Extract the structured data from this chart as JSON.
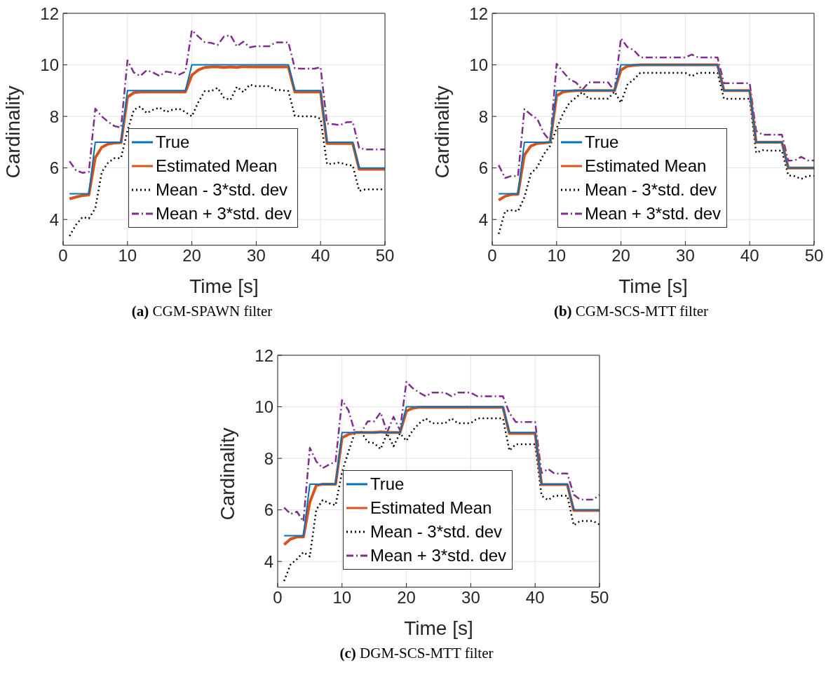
{
  "chart_data": [
    {
      "type": "line",
      "title": "(a) CGM-SPAWN filter",
      "xlabel": "Time [s]",
      "ylabel": "Cardinality",
      "xlim": [
        0,
        50
      ],
      "xticks": [
        0,
        10,
        20,
        30,
        40,
        50
      ],
      "ylim": [
        3,
        12
      ],
      "yticks": [
        4,
        6,
        8,
        10,
        12
      ],
      "grid": true,
      "legend": "bottom",
      "x": [
        1,
        2,
        3,
        4,
        5,
        6,
        7,
        8,
        9,
        10,
        11,
        12,
        13,
        14,
        15,
        16,
        17,
        18,
        19,
        20,
        21,
        22,
        23,
        24,
        25,
        26,
        27,
        28,
        29,
        30,
        31,
        32,
        33,
        34,
        35,
        36,
        37,
        38,
        39,
        40,
        41,
        42,
        43,
        44,
        45,
        46,
        47,
        48,
        49,
        50
      ],
      "series": [
        {
          "name": "True",
          "color": "#0072bd",
          "line_style": "solid",
          "values": [
            5,
            5,
            5,
            5,
            7,
            7,
            7,
            7,
            7,
            9,
            9,
            9,
            9,
            9,
            9,
            9,
            9,
            9,
            9,
            10,
            10,
            10,
            10,
            10,
            10,
            10,
            10,
            10,
            10,
            10,
            10,
            10,
            10,
            10,
            10,
            9,
            9,
            9,
            9,
            9,
            7,
            7,
            7,
            7,
            7,
            6,
            6,
            6,
            6,
            6
          ]
        },
        {
          "name": "Estimated Mean",
          "color": "#d95319",
          "line_style": "solid",
          "values": [
            4.8,
            4.87,
            4.93,
            4.95,
            6.4,
            6.8,
            6.93,
            6.97,
            6.98,
            8.75,
            8.92,
            8.95,
            8.95,
            8.95,
            8.95,
            8.95,
            8.95,
            8.95,
            8.95,
            9.6,
            9.8,
            9.9,
            9.92,
            9.92,
            9.9,
            9.92,
            9.9,
            9.93,
            9.92,
            9.92,
            9.92,
            9.92,
            9.92,
            9.92,
            9.92,
            8.95,
            8.95,
            8.95,
            8.95,
            8.95,
            6.95,
            6.95,
            6.95,
            6.95,
            6.95,
            5.95,
            5.95,
            5.95,
            5.95,
            5.95
          ]
        },
        {
          "name": "Mean - 3*std. dev",
          "color": "#000000",
          "line_style": "dotted",
          "values": [
            3.36,
            3.79,
            4.09,
            4.04,
            4.43,
            5.83,
            6.21,
            6.38,
            6.38,
            7.45,
            8.26,
            8.38,
            8.13,
            8.26,
            8.34,
            8.17,
            8.26,
            8.3,
            8.17,
            8.0,
            8.55,
            8.98,
            8.98,
            9.11,
            8.72,
            8.64,
            9.15,
            8.94,
            9.23,
            9.17,
            9.17,
            9.17,
            9.02,
            9.02,
            8.98,
            8.02,
            8.0,
            8.0,
            8.0,
            7.91,
            6.15,
            6.17,
            6.21,
            6.13,
            6.09,
            5.11,
            5.17,
            5.17,
            5.17,
            5.17
          ]
        },
        {
          "name": "Mean + 3*std. dev",
          "color": "#7e2f8e",
          "line_style": "dashed",
          "values": [
            6.26,
            5.91,
            5.81,
            5.85,
            8.3,
            8.0,
            7.79,
            7.62,
            7.57,
            10.17,
            9.7,
            9.57,
            9.79,
            9.7,
            9.57,
            9.74,
            9.7,
            9.62,
            9.74,
            11.34,
            11.1,
            10.88,
            10.85,
            10.77,
            11.1,
            11.15,
            10.72,
            10.9,
            10.68,
            10.72,
            10.72,
            10.72,
            10.87,
            10.87,
            10.87,
            9.87,
            9.85,
            9.85,
            9.85,
            9.91,
            7.72,
            7.7,
            7.66,
            7.77,
            7.79,
            6.77,
            6.72,
            6.72,
            6.72,
            6.72
          ]
        }
      ]
    },
    {
      "type": "line",
      "title": "(b) CGM-SCS-MTT filter",
      "xlabel": "Time [s]",
      "ylabel": "Cardinality",
      "xlim": [
        0,
        50
      ],
      "xticks": [
        0,
        10,
        20,
        30,
        40,
        50
      ],
      "ylim": [
        3,
        12
      ],
      "yticks": [
        4,
        6,
        8,
        10,
        12
      ],
      "grid": true,
      "legend": "bottom",
      "x": [
        1,
        2,
        3,
        4,
        5,
        6,
        7,
        8,
        9,
        10,
        11,
        12,
        13,
        14,
        15,
        16,
        17,
        18,
        19,
        20,
        21,
        22,
        23,
        24,
        25,
        26,
        27,
        28,
        29,
        30,
        31,
        32,
        33,
        34,
        35,
        36,
        37,
        38,
        39,
        40,
        41,
        42,
        43,
        44,
        45,
        46,
        47,
        48,
        49,
        50
      ],
      "series": [
        {
          "name": "True",
          "color": "#0072bd",
          "line_style": "solid",
          "values": [
            5,
            5,
            5,
            5,
            7,
            7,
            7,
            7,
            7,
            9,
            9,
            9,
            9,
            9,
            9,
            9,
            9,
            9,
            9,
            10,
            10,
            10,
            10,
            10,
            10,
            10,
            10,
            10,
            10,
            10,
            10,
            10,
            10,
            10,
            10,
            9,
            9,
            9,
            9,
            9,
            7,
            7,
            7,
            7,
            7,
            6,
            6,
            6,
            6,
            6
          ]
        },
        {
          "name": "Estimated Mean",
          "color": "#d95319",
          "line_style": "solid",
          "values": [
            4.75,
            4.9,
            4.97,
            4.98,
            6.5,
            6.85,
            6.95,
            6.97,
            7.0,
            8.8,
            8.95,
            8.98,
            9.0,
            9.0,
            9.0,
            9.0,
            9.0,
            9.0,
            9.0,
            9.8,
            9.95,
            9.98,
            10.0,
            10.0,
            10.0,
            10.0,
            10.0,
            10.0,
            10.0,
            10.0,
            10.0,
            10.0,
            10.0,
            10.0,
            10.0,
            9.0,
            9.0,
            9.0,
            9.0,
            9.0,
            7.0,
            7.0,
            7.0,
            7.0,
            7.0,
            6.0,
            6.0,
            6.0,
            6.0,
            6.0
          ]
        },
        {
          "name": "Mean - 3*std. dev",
          "color": "#000000",
          "line_style": "dotted",
          "values": [
            3.44,
            4.32,
            4.36,
            4.32,
            4.86,
            5.78,
            6.03,
            6.53,
            6.86,
            7.53,
            8.11,
            8.53,
            8.73,
            8.94,
            8.69,
            8.69,
            8.69,
            8.69,
            8.96,
            8.53,
            9.23,
            9.44,
            9.69,
            9.69,
            9.69,
            9.69,
            9.69,
            9.69,
            9.69,
            9.69,
            9.56,
            9.69,
            9.69,
            9.69,
            9.69,
            8.69,
            8.68,
            8.68,
            8.68,
            8.68,
            6.59,
            6.69,
            6.67,
            6.67,
            6.67,
            5.71,
            5.68,
            5.57,
            5.69,
            5.69
          ]
        },
        {
          "name": "Mean + 3*std. dev",
          "color": "#7e2f8e",
          "line_style": "dashed",
          "values": [
            6.11,
            5.61,
            5.69,
            5.68,
            8.28,
            8.07,
            7.9,
            7.36,
            7.03,
            10.04,
            9.73,
            9.44,
            9.32,
            9.03,
            9.32,
            9.32,
            9.32,
            9.32,
            8.98,
            11.03,
            10.69,
            10.57,
            10.29,
            10.29,
            10.29,
            10.29,
            10.29,
            10.29,
            10.29,
            10.29,
            10.4,
            10.29,
            10.29,
            10.29,
            10.29,
            9.29,
            9.29,
            9.29,
            9.29,
            9.29,
            7.44,
            7.29,
            7.29,
            7.29,
            7.29,
            6.28,
            6.29,
            6.43,
            6.29,
            6.29
          ]
        }
      ]
    },
    {
      "type": "line",
      "title": "(c) DGM-SCS-MTT filter",
      "xlabel": "Time [s]",
      "ylabel": "Cardinality",
      "xlim": [
        0,
        50
      ],
      "xticks": [
        0,
        10,
        20,
        30,
        40,
        50
      ],
      "ylim": [
        3,
        12
      ],
      "yticks": [
        4,
        6,
        8,
        10,
        12
      ],
      "grid": true,
      "legend": "bottom",
      "x": [
        1,
        2,
        3,
        4,
        5,
        6,
        7,
        8,
        9,
        10,
        11,
        12,
        13,
        14,
        15,
        16,
        17,
        18,
        19,
        20,
        21,
        22,
        23,
        24,
        25,
        26,
        27,
        28,
        29,
        30,
        31,
        32,
        33,
        34,
        35,
        36,
        37,
        38,
        39,
        40,
        41,
        42,
        43,
        44,
        45,
        46,
        47,
        48,
        49,
        50
      ],
      "series": [
        {
          "name": "True",
          "color": "#0072bd",
          "line_style": "solid",
          "values": [
            5,
            5,
            5,
            5,
            7,
            7,
            7,
            7,
            7,
            9,
            9,
            9,
            9,
            9,
            9,
            9,
            9,
            9,
            9,
            10,
            10,
            10,
            10,
            10,
            10,
            10,
            10,
            10,
            10,
            10,
            10,
            10,
            10,
            10,
            10,
            9,
            9,
            9,
            9,
            9,
            7,
            7,
            7,
            7,
            7,
            6,
            6,
            6,
            6,
            6
          ]
        },
        {
          "name": "Estimated Mean",
          "color": "#d95319",
          "line_style": "solid",
          "values": [
            4.65,
            4.87,
            4.95,
            4.95,
            6.3,
            6.95,
            7.0,
            7.0,
            7.0,
            8.8,
            8.93,
            9.0,
            9.0,
            9.0,
            9.0,
            9.03,
            9.0,
            9.0,
            9.0,
            9.83,
            9.95,
            9.98,
            9.98,
            9.98,
            9.98,
            9.98,
            9.98,
            9.98,
            9.98,
            9.98,
            9.98,
            9.98,
            9.98,
            9.98,
            9.98,
            8.97,
            8.97,
            8.97,
            8.97,
            8.97,
            6.98,
            6.98,
            6.98,
            6.98,
            6.98,
            5.98,
            5.98,
            5.98,
            5.98,
            5.98
          ]
        },
        {
          "name": "Mean - 3*std. dev",
          "color": "#000000",
          "line_style": "dotted",
          "values": [
            3.24,
            3.88,
            4.09,
            4.36,
            4.19,
            6.01,
            6.38,
            6.26,
            6.18,
            7.47,
            8.26,
            9.01,
            9.01,
            8.63,
            8.59,
            8.36,
            8.97,
            8.47,
            8.97,
            8.68,
            9.09,
            9.36,
            9.55,
            9.36,
            9.36,
            9.36,
            9.55,
            9.36,
            9.36,
            9.36,
            9.55,
            9.55,
            9.55,
            9.55,
            9.55,
            8.3,
            8.55,
            8.55,
            8.55,
            8.55,
            6.55,
            6.38,
            6.55,
            6.55,
            6.55,
            5.4,
            5.57,
            5.57,
            5.57,
            5.43
          ]
        },
        {
          "name": "Mean + 3*std. dev",
          "color": "#7e2f8e",
          "line_style": "dashed",
          "values": [
            6.09,
            5.84,
            5.93,
            5.55,
            8.41,
            7.88,
            7.62,
            7.76,
            7.87,
            10.26,
            9.86,
            9.01,
            9.01,
            9.44,
            9.44,
            9.78,
            9.01,
            9.61,
            9.09,
            10.97,
            10.72,
            10.55,
            10.41,
            10.55,
            10.55,
            10.55,
            10.41,
            10.55,
            10.55,
            10.55,
            10.41,
            10.41,
            10.41,
            10.41,
            10.41,
            9.76,
            9.41,
            9.41,
            9.41,
            9.41,
            7.43,
            7.59,
            7.41,
            7.41,
            7.41,
            6.59,
            6.4,
            6.4,
            6.4,
            6.58
          ]
        }
      ]
    }
  ]
}
